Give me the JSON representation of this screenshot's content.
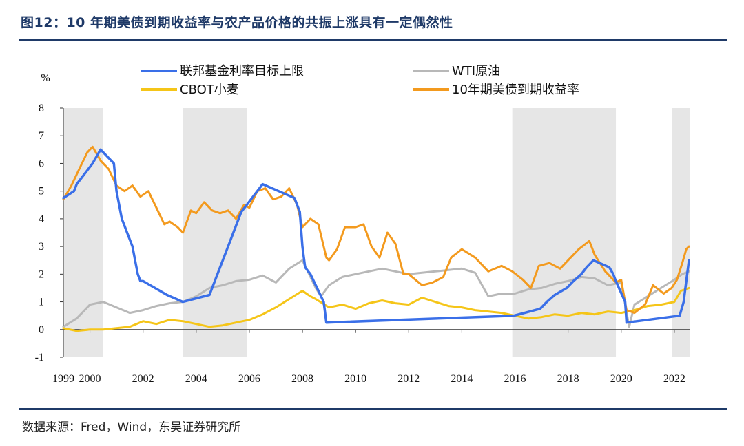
{
  "header": {
    "title": "图12：10 年期美债到期收益率与农产品价格的共振上涨具有一定偶然性"
  },
  "footer": {
    "source": "数据来源：Fred，Wind，东吴证券研究所"
  },
  "chart_data": {
    "type": "line",
    "ylabel": "%",
    "ylim": [
      -1,
      8
    ],
    "yticks": [
      "8",
      "7",
      "6",
      "5",
      "4",
      "3",
      "2",
      "1",
      "0",
      "-1"
    ],
    "xlim": [
      1999,
      2022.6
    ],
    "xticks": [
      "1999",
      "2000",
      "2002",
      "2004",
      "2006",
      "2008",
      "2010",
      "2012",
      "2014",
      "2016",
      "2018",
      "2020",
      "2022"
    ],
    "grid": false,
    "legend_position": "top",
    "shaded_periods": [
      [
        1999.0,
        2000.5
      ],
      [
        2003.5,
        2005.9
      ],
      [
        2015.9,
        2019.8
      ],
      [
        2021.9,
        2022.6
      ]
    ],
    "series": [
      {
        "name": "联邦基金利率目标上限",
        "color": "#3a6fe8",
        "x": [
          1999.0,
          1999.4,
          1999.5,
          1999.7,
          1999.9,
          2000.1,
          2000.4,
          2000.9,
          2001.0,
          2001.1,
          2001.2,
          2001.3,
          2001.4,
          2001.6,
          2001.7,
          2001.8,
          2001.9,
          2002.0,
          2002.9,
          2003.5,
          2004.5,
          2004.7,
          2004.9,
          2005.1,
          2005.3,
          2005.5,
          2005.7,
          2005.9,
          2006.1,
          2006.3,
          2006.5,
          2007.7,
          2007.8,
          2007.9,
          2008.0,
          2008.1,
          2008.3,
          2008.8,
          2008.9,
          2015.95,
          2016.95,
          2017.2,
          2017.5,
          2017.95,
          2018.2,
          2018.5,
          2018.7,
          2018.95,
          2019.55,
          2019.7,
          2019.8,
          2020.15,
          2020.2,
          2022.2,
          2022.35,
          2022.45,
          2022.55
        ],
        "y": [
          4.75,
          5.0,
          5.25,
          5.5,
          5.75,
          6.0,
          6.5,
          6.0,
          5.0,
          4.5,
          4.0,
          3.75,
          3.5,
          3.0,
          2.5,
          2.0,
          1.75,
          1.75,
          1.25,
          1.0,
          1.25,
          1.75,
          2.25,
          2.75,
          3.25,
          3.75,
          4.25,
          4.5,
          4.75,
          5.0,
          5.25,
          4.75,
          4.5,
          4.25,
          3.0,
          2.25,
          2.0,
          1.0,
          0.25,
          0.5,
          0.75,
          1.0,
          1.25,
          1.5,
          1.75,
          2.0,
          2.25,
          2.5,
          2.25,
          2.0,
          1.75,
          1.0,
          0.25,
          0.5,
          1.0,
          1.75,
          2.5
        ]
      },
      {
        "name": "WTI原油",
        "color": "#b8b8b8",
        "x": [
          1999.0,
          1999.5,
          2000.0,
          2000.5,
          2001.0,
          2001.5,
          2002.0,
          2002.5,
          2003.0,
          2003.5,
          2004.0,
          2004.5,
          2005.0,
          2005.5,
          2006.0,
          2006.5,
          2007.0,
          2007.5,
          2008.0,
          2008.5,
          2008.7,
          2009.0,
          2009.5,
          2010.0,
          2011.0,
          2011.5,
          2012.0,
          2013.0,
          2014.0,
          2014.5,
          2015.0,
          2015.5,
          2016.0,
          2016.5,
          2017.0,
          2017.5,
          2018.0,
          2018.5,
          2019.0,
          2019.5,
          2020.0,
          2020.3,
          2020.5,
          2021.0,
          2021.5,
          2022.0,
          2022.3,
          2022.55
        ],
        "y": [
          0.1,
          0.4,
          0.9,
          1.0,
          0.8,
          0.6,
          0.7,
          0.85,
          0.95,
          1.0,
          1.2,
          1.5,
          1.6,
          1.75,
          1.8,
          1.95,
          1.7,
          2.2,
          2.5,
          1.5,
          1.2,
          1.6,
          1.9,
          2.0,
          2.2,
          2.1,
          2.0,
          2.1,
          2.2,
          2.05,
          1.2,
          1.3,
          1.3,
          1.45,
          1.5,
          1.65,
          1.75,
          1.9,
          1.85,
          1.6,
          1.7,
          0.1,
          0.9,
          1.2,
          1.5,
          1.8,
          2.0,
          2.1
        ]
      },
      {
        "name": "CBOT小麦",
        "color": "#f5c518",
        "x": [
          1999.0,
          1999.5,
          2000.0,
          2000.5,
          2001.0,
          2001.5,
          2002.0,
          2002.5,
          2003.0,
          2003.5,
          2004.0,
          2004.5,
          2005.0,
          2005.5,
          2006.0,
          2006.5,
          2007.0,
          2007.5,
          2008.0,
          2008.3,
          2008.5,
          2009.0,
          2009.5,
          2010.0,
          2010.5,
          2011.0,
          2011.5,
          2012.0,
          2012.5,
          2013.0,
          2013.5,
          2014.0,
          2014.5,
          2015.0,
          2015.5,
          2016.0,
          2016.5,
          2017.0,
          2017.5,
          2018.0,
          2018.5,
          2019.0,
          2019.5,
          2020.0,
          2020.5,
          2021.0,
          2021.5,
          2022.0,
          2022.25,
          2022.55
        ],
        "y": [
          0.05,
          -0.05,
          0.0,
          0.0,
          0.05,
          0.1,
          0.3,
          0.2,
          0.35,
          0.3,
          0.2,
          0.1,
          0.15,
          0.25,
          0.35,
          0.55,
          0.8,
          1.1,
          1.4,
          1.2,
          1.1,
          0.8,
          0.9,
          0.75,
          0.95,
          1.05,
          0.95,
          0.9,
          1.15,
          1.0,
          0.85,
          0.8,
          0.7,
          0.65,
          0.6,
          0.5,
          0.4,
          0.45,
          0.55,
          0.5,
          0.6,
          0.55,
          0.65,
          0.6,
          0.7,
          0.85,
          0.9,
          1.0,
          1.4,
          1.5
        ]
      },
      {
        "name": "10年期美债到期收益率",
        "color": "#f39a1e",
        "x": [
          1999.0,
          1999.3,
          1999.6,
          1999.9,
          2000.1,
          2000.4,
          2000.7,
          2001.0,
          2001.3,
          2001.6,
          2001.9,
          2002.2,
          2002.5,
          2002.8,
          2003.0,
          2003.3,
          2003.5,
          2003.8,
          2004.0,
          2004.3,
          2004.6,
          2004.9,
          2005.2,
          2005.5,
          2005.8,
          2006.0,
          2006.3,
          2006.6,
          2006.9,
          2007.2,
          2007.5,
          2007.8,
          2008.0,
          2008.3,
          2008.6,
          2008.9,
          2009.0,
          2009.3,
          2009.6,
          2010.0,
          2010.3,
          2010.6,
          2010.9,
          2011.2,
          2011.5,
          2011.8,
          2012.0,
          2012.5,
          2012.9,
          2013.3,
          2013.6,
          2014.0,
          2014.5,
          2015.0,
          2015.5,
          2015.9,
          2016.3,
          2016.6,
          2016.9,
          2017.3,
          2017.7,
          2018.0,
          2018.4,
          2018.8,
          2019.0,
          2019.4,
          2019.8,
          2020.0,
          2020.2,
          2020.5,
          2020.9,
          2021.2,
          2021.6,
          2021.9,
          2022.1,
          2022.3,
          2022.45,
          2022.55
        ],
        "y": [
          4.7,
          5.2,
          5.8,
          6.4,
          6.6,
          6.1,
          5.8,
          5.2,
          5.0,
          5.2,
          4.8,
          5.0,
          4.4,
          3.8,
          3.9,
          3.7,
          3.5,
          4.3,
          4.2,
          4.6,
          4.3,
          4.2,
          4.3,
          4.0,
          4.5,
          4.4,
          5.0,
          5.1,
          4.7,
          4.8,
          5.1,
          4.5,
          3.7,
          4.0,
          3.8,
          2.6,
          2.5,
          2.9,
          3.7,
          3.7,
          3.8,
          3.0,
          2.6,
          3.5,
          3.1,
          2.0,
          2.0,
          1.6,
          1.7,
          1.9,
          2.6,
          2.9,
          2.6,
          2.1,
          2.3,
          2.1,
          1.8,
          1.5,
          2.3,
          2.4,
          2.2,
          2.5,
          2.9,
          3.2,
          2.7,
          2.1,
          1.7,
          1.8,
          0.7,
          0.6,
          0.9,
          1.6,
          1.3,
          1.5,
          1.8,
          2.4,
          2.9,
          3.0
        ]
      }
    ]
  }
}
